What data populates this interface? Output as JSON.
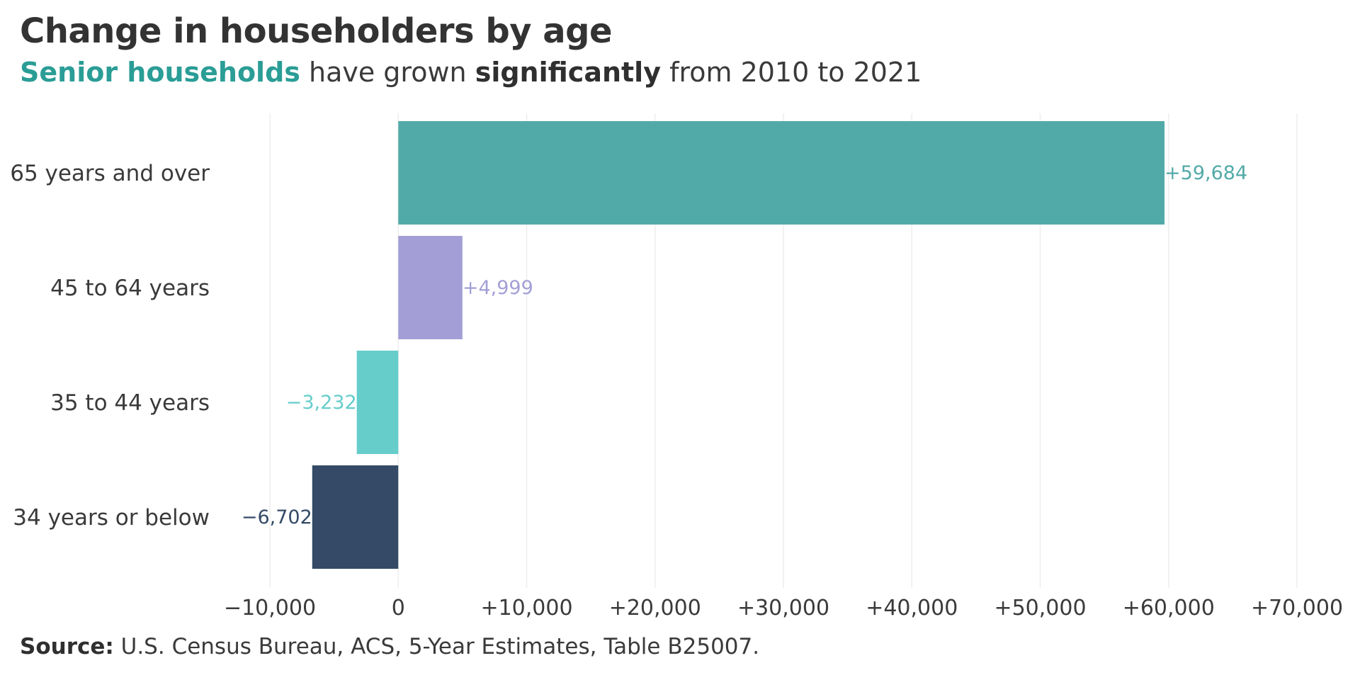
{
  "title": "Change in householders by age",
  "subtitle": {
    "part1": "Senior households",
    "part2": " have grown ",
    "part3": "significantly",
    "part4": " from 2010 to 2021"
  },
  "source": {
    "label": "Source:",
    "text": " U.S. Census Bureau, ACS, 5-Year Estimates, Table B25007."
  },
  "colors": {
    "accent": "#2a9d96",
    "grid": "#eeeeee",
    "text": "#3a3a3a"
  },
  "chart_data": {
    "type": "bar",
    "orientation": "horizontal",
    "title": "Change in householders by age",
    "categories": [
      "65 years and over",
      "45 to 64 years",
      "35 to 44 years",
      "34 years or below"
    ],
    "values": [
      59684,
      4999,
      -3232,
      -6702
    ],
    "value_labels": [
      "+59,684",
      "+4,999",
      "−3,232",
      "−6,702"
    ],
    "bar_colors": [
      "#52aaa8",
      "#a39fd6",
      "#66cdcb",
      "#344a66"
    ],
    "xlim": [
      -10000,
      70000
    ],
    "x_ticks": [
      -10000,
      0,
      10000,
      20000,
      30000,
      40000,
      50000,
      60000,
      70000
    ],
    "x_tick_labels": [
      "−10,000",
      "0",
      "+10,000",
      "+20,000",
      "+30,000",
      "+40,000",
      "+50,000",
      "+60,000",
      "+70,000"
    ],
    "xlabel": "",
    "ylabel": "",
    "grid": "vertical"
  }
}
